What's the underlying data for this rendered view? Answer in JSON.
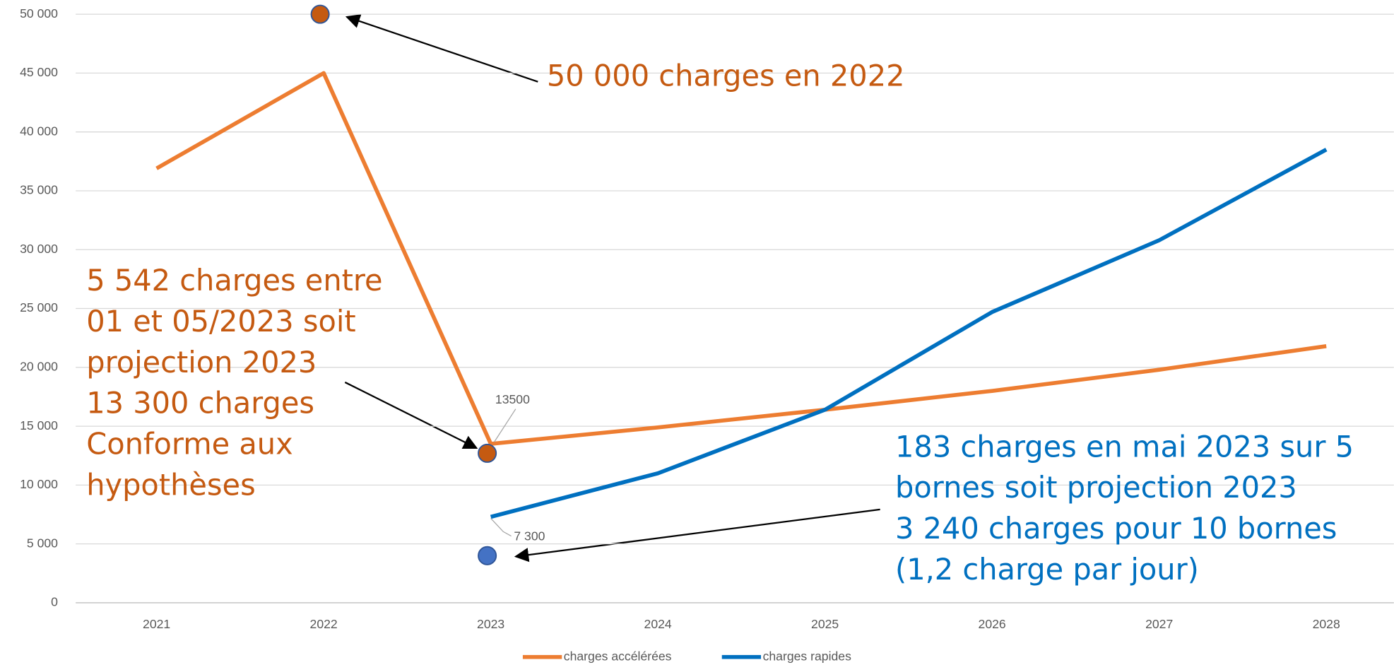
{
  "chart_data": {
    "type": "line",
    "categories": [
      "2021",
      "2022",
      "2023",
      "2024",
      "2025",
      "2026",
      "2027",
      "2028"
    ],
    "series": [
      {
        "name": "charges accélérées",
        "color": "#ed7d31",
        "values": [
          36900,
          45000,
          13500,
          14900,
          16400,
          18000,
          19800,
          21800
        ],
        "value_labels": [
          null,
          null,
          "13500",
          null,
          null,
          null,
          null,
          null
        ]
      },
      {
        "name": "charges rapides",
        "color": "#0070c0",
        "values": [
          null,
          null,
          7300,
          11000,
          16400,
          24700,
          30800,
          38500
        ],
        "value_labels": [
          null,
          null,
          "7 300",
          null,
          null,
          null,
          null,
          null
        ]
      }
    ],
    "points": [
      {
        "x": "2022",
        "value": 50000,
        "color": "#c55a11"
      },
      {
        "x": "2023",
        "value": 12700,
        "color": "#c55a11"
      },
      {
        "x": "2023",
        "value": 4000,
        "color": "#4472c4"
      }
    ],
    "annotations": [
      {
        "lines": [
          "50 000 charges en 2022"
        ],
        "color": "#c55a11"
      },
      {
        "lines": [
          "5 542 charges entre",
          "01 et 05/2023 soit",
          "projection 2023",
          "13 300 charges",
          "Conforme aux",
          "hypothèses"
        ],
        "color": "#c55a11"
      },
      {
        "lines": [
          "183 charges en mai 2023 sur 5",
          "bornes  soit projection 2023",
          "3 240 charges pour 10 bornes",
          "(1,2 charge par jour)"
        ],
        "color": "#0070c0"
      }
    ],
    "ylim": [
      0,
      50000
    ],
    "yticks": [
      0,
      {
        "value": 5000,
        "label": "5 000"
      },
      {
        "value": 10000,
        "label": "10 000"
      },
      {
        "value": 15000,
        "label": "15 000"
      },
      {
        "value": 20000,
        "label": "20 000"
      },
      {
        "value": 25000,
        "label": "25 000"
      },
      {
        "value": 30000,
        "label": "30 000"
      },
      {
        "value": 35000,
        "label": "35 000"
      },
      {
        "value": 40000,
        "label": "40 000"
      },
      {
        "value": 45000,
        "label": "45 000"
      },
      {
        "value": 50000,
        "label": "50 000"
      }
    ],
    "grid": true,
    "legend": "bottom"
  }
}
